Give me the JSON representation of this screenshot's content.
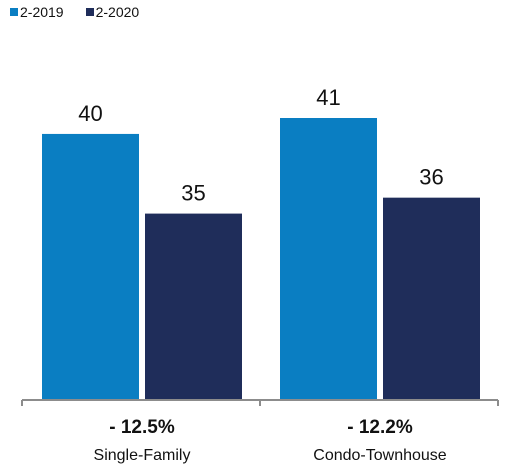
{
  "colors": {
    "series_2019": "#0a7ec2",
    "series_2020": "#1f2d5a",
    "axis": "#8c8c8c"
  },
  "legend": {
    "items": [
      {
        "label": "2-2019",
        "color": "#0a7ec2"
      },
      {
        "label": "2-2020",
        "color": "#1f2d5a"
      }
    ]
  },
  "chart_data": {
    "type": "bar",
    "categories": [
      "Single-Family",
      "Condo-Townhouse"
    ],
    "series": [
      {
        "name": "2-2019",
        "values": [
          40,
          41
        ]
      },
      {
        "name": "2-2020",
        "values": [
          35,
          36
        ]
      }
    ],
    "changes": [
      "- 12.5%",
      "- 12.2%"
    ],
    "title": "",
    "xlabel": "",
    "ylabel": "",
    "ylim": [
      23.3,
      41
    ],
    "grid": false,
    "legend_position": "top-left"
  }
}
